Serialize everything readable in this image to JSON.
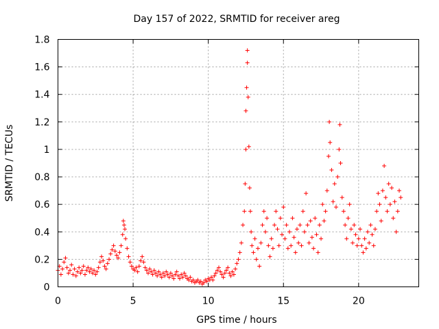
{
  "chart_data": {
    "type": "scatter",
    "title": "Day 157 of 2022, SRMTID for receiver areg",
    "xlabel": "GPS time / hours",
    "ylabel": "SRMTID / TECUs",
    "xlim": [
      0,
      24
    ],
    "ylim": [
      0,
      1.8
    ],
    "xticks": [
      0,
      5,
      10,
      15,
      20
    ],
    "xtick_labels": [
      "0",
      "5",
      "10",
      "15",
      "20"
    ],
    "yticks": [
      0,
      0.2,
      0.4,
      0.6,
      0.8,
      1,
      1.2,
      1.4,
      1.6,
      1.8
    ],
    "ytick_labels": [
      "0",
      "0.2",
      "0.4",
      "0.6",
      "0.8",
      "1",
      "1.2",
      "1.4",
      "1.6",
      "1.8"
    ],
    "grid": true,
    "marker": "plus",
    "series": [
      {
        "name": "SRMTID",
        "color": "#ff0000",
        "points": [
          [
            0.0,
            0.12
          ],
          [
            0.1,
            0.15
          ],
          [
            0.2,
            0.09
          ],
          [
            0.3,
            0.13
          ],
          [
            0.4,
            0.18
          ],
          [
            0.5,
            0.21
          ],
          [
            0.6,
            0.14
          ],
          [
            0.7,
            0.1
          ],
          [
            0.8,
            0.12
          ],
          [
            0.9,
            0.16
          ],
          [
            1.0,
            0.09
          ],
          [
            1.1,
            0.13
          ],
          [
            1.2,
            0.08
          ],
          [
            1.3,
            0.11
          ],
          [
            1.4,
            0.14
          ],
          [
            1.5,
            0.1
          ],
          [
            1.6,
            0.12
          ],
          [
            1.7,
            0.15
          ],
          [
            1.8,
            0.09
          ],
          [
            1.9,
            0.12
          ],
          [
            2.0,
            0.14
          ],
          [
            2.1,
            0.11
          ],
          [
            2.2,
            0.13
          ],
          [
            2.3,
            0.1
          ],
          [
            2.4,
            0.12
          ],
          [
            2.5,
            0.09
          ],
          [
            2.6,
            0.11
          ],
          [
            2.7,
            0.14
          ],
          [
            2.8,
            0.18
          ],
          [
            2.9,
            0.22
          ],
          [
            3.0,
            0.19
          ],
          [
            3.1,
            0.15
          ],
          [
            3.2,
            0.13
          ],
          [
            3.3,
            0.17
          ],
          [
            3.4,
            0.2
          ],
          [
            3.5,
            0.24
          ],
          [
            3.6,
            0.27
          ],
          [
            3.7,
            0.3
          ],
          [
            3.8,
            0.26
          ],
          [
            3.9,
            0.23
          ],
          [
            4.0,
            0.21
          ],
          [
            4.1,
            0.25
          ],
          [
            4.2,
            0.3
          ],
          [
            4.3,
            0.38
          ],
          [
            4.35,
            0.48
          ],
          [
            4.4,
            0.45
          ],
          [
            4.45,
            0.42
          ],
          [
            4.5,
            0.35
          ],
          [
            4.6,
            0.28
          ],
          [
            4.7,
            0.22
          ],
          [
            4.8,
            0.18
          ],
          [
            4.9,
            0.15
          ],
          [
            5.0,
            0.13
          ],
          [
            5.1,
            0.12
          ],
          [
            5.2,
            0.14
          ],
          [
            5.3,
            0.11
          ],
          [
            5.4,
            0.15
          ],
          [
            5.5,
            0.19
          ],
          [
            5.6,
            0.22
          ],
          [
            5.7,
            0.18
          ],
          [
            5.8,
            0.14
          ],
          [
            5.9,
            0.12
          ],
          [
            6.0,
            0.1
          ],
          [
            6.1,
            0.13
          ],
          [
            6.2,
            0.11
          ],
          [
            6.3,
            0.09
          ],
          [
            6.4,
            0.12
          ],
          [
            6.5,
            0.1
          ],
          [
            6.6,
            0.08
          ],
          [
            6.7,
            0.11
          ],
          [
            6.8,
            0.09
          ],
          [
            6.9,
            0.07
          ],
          [
            7.0,
            0.1
          ],
          [
            7.1,
            0.08
          ],
          [
            7.2,
            0.11
          ],
          [
            7.3,
            0.09
          ],
          [
            7.4,
            0.07
          ],
          [
            7.5,
            0.1
          ],
          [
            7.6,
            0.08
          ],
          [
            7.7,
            0.06
          ],
          [
            7.8,
            0.09
          ],
          [
            7.9,
            0.11
          ],
          [
            8.0,
            0.08
          ],
          [
            8.1,
            0.06
          ],
          [
            8.2,
            0.09
          ],
          [
            8.3,
            0.07
          ],
          [
            8.4,
            0.1
          ],
          [
            8.5,
            0.08
          ],
          [
            8.6,
            0.06
          ],
          [
            8.7,
            0.05
          ],
          [
            8.8,
            0.07
          ],
          [
            8.9,
            0.04
          ],
          [
            9.0,
            0.05
          ],
          [
            9.1,
            0.03
          ],
          [
            9.2,
            0.04
          ],
          [
            9.3,
            0.05
          ],
          [
            9.4,
            0.03
          ],
          [
            9.5,
            0.04
          ],
          [
            9.6,
            0.02
          ],
          [
            9.7,
            0.03
          ],
          [
            9.8,
            0.05
          ],
          [
            9.9,
            0.04
          ],
          [
            10.0,
            0.06
          ],
          [
            10.1,
            0.05
          ],
          [
            10.2,
            0.07
          ],
          [
            10.3,
            0.05
          ],
          [
            10.4,
            0.08
          ],
          [
            10.5,
            0.1
          ],
          [
            10.6,
            0.12
          ],
          [
            10.7,
            0.14
          ],
          [
            10.8,
            0.11
          ],
          [
            10.9,
            0.09
          ],
          [
            11.0,
            0.07
          ],
          [
            11.1,
            0.1
          ],
          [
            11.2,
            0.12
          ],
          [
            11.3,
            0.14
          ],
          [
            11.4,
            0.1
          ],
          [
            11.5,
            0.08
          ],
          [
            11.6,
            0.11
          ],
          [
            11.7,
            0.09
          ],
          [
            11.8,
            0.13
          ],
          [
            11.9,
            0.17
          ],
          [
            12.0,
            0.2
          ],
          [
            12.1,
            0.25
          ],
          [
            12.2,
            0.32
          ],
          [
            12.3,
            0.45
          ],
          [
            12.4,
            0.55
          ],
          [
            12.45,
            0.75
          ],
          [
            12.5,
            1.0
          ],
          [
            12.5,
            1.28
          ],
          [
            12.55,
            1.45
          ],
          [
            12.6,
            1.63
          ],
          [
            12.6,
            1.72
          ],
          [
            12.65,
            1.38
          ],
          [
            12.7,
            1.02
          ],
          [
            12.75,
            0.72
          ],
          [
            12.8,
            0.55
          ],
          [
            12.85,
            0.4
          ],
          [
            12.9,
            0.3
          ],
          [
            13.0,
            0.25
          ],
          [
            13.1,
            0.35
          ],
          [
            13.2,
            0.2
          ],
          [
            13.3,
            0.28
          ],
          [
            13.4,
            0.15
          ],
          [
            13.5,
            0.32
          ],
          [
            13.6,
            0.45
          ],
          [
            13.7,
            0.55
          ],
          [
            13.8,
            0.4
          ],
          [
            13.9,
            0.5
          ],
          [
            14.0,
            0.3
          ],
          [
            14.1,
            0.22
          ],
          [
            14.2,
            0.35
          ],
          [
            14.3,
            0.28
          ],
          [
            14.4,
            0.45
          ],
          [
            14.5,
            0.55
          ],
          [
            14.6,
            0.42
          ],
          [
            14.7,
            0.3
          ],
          [
            14.8,
            0.5
          ],
          [
            14.9,
            0.38
          ],
          [
            15.0,
            0.58
          ],
          [
            15.1,
            0.35
          ],
          [
            15.2,
            0.45
          ],
          [
            15.3,
            0.28
          ],
          [
            15.4,
            0.4
          ],
          [
            15.5,
            0.3
          ],
          [
            15.6,
            0.5
          ],
          [
            15.7,
            0.36
          ],
          [
            15.8,
            0.25
          ],
          [
            15.9,
            0.42
          ],
          [
            16.0,
            0.32
          ],
          [
            16.1,
            0.45
          ],
          [
            16.2,
            0.3
          ],
          [
            16.3,
            0.55
          ],
          [
            16.4,
            0.4
          ],
          [
            16.5,
            0.68
          ],
          [
            16.6,
            0.45
          ],
          [
            16.7,
            0.32
          ],
          [
            16.8,
            0.48
          ],
          [
            16.9,
            0.36
          ],
          [
            17.0,
            0.28
          ],
          [
            17.1,
            0.5
          ],
          [
            17.2,
            0.38
          ],
          [
            17.3,
            0.25
          ],
          [
            17.4,
            0.45
          ],
          [
            17.5,
            0.35
          ],
          [
            17.6,
            0.6
          ],
          [
            17.7,
            0.48
          ],
          [
            17.8,
            0.55
          ],
          [
            17.9,
            0.7
          ],
          [
            18.0,
            0.95
          ],
          [
            18.05,
            1.2
          ],
          [
            18.1,
            1.05
          ],
          [
            18.2,
            0.85
          ],
          [
            18.3,
            0.62
          ],
          [
            18.4,
            0.75
          ],
          [
            18.5,
            0.58
          ],
          [
            18.6,
            0.8
          ],
          [
            18.7,
            1.0
          ],
          [
            18.75,
            1.18
          ],
          [
            18.8,
            0.9
          ],
          [
            18.9,
            0.65
          ],
          [
            19.0,
            0.55
          ],
          [
            19.1,
            0.45
          ],
          [
            19.2,
            0.35
          ],
          [
            19.3,
            0.5
          ],
          [
            19.4,
            0.6
          ],
          [
            19.5,
            0.42
          ],
          [
            19.6,
            0.32
          ],
          [
            19.7,
            0.45
          ],
          [
            19.8,
            0.38
          ],
          [
            19.9,
            0.3
          ],
          [
            20.0,
            0.35
          ],
          [
            20.1,
            0.42
          ],
          [
            20.2,
            0.3
          ],
          [
            20.3,
            0.25
          ],
          [
            20.4,
            0.35
          ],
          [
            20.5,
            0.28
          ],
          [
            20.6,
            0.4
          ],
          [
            20.7,
            0.32
          ],
          [
            20.8,
            0.45
          ],
          [
            20.9,
            0.38
          ],
          [
            21.0,
            0.3
          ],
          [
            21.1,
            0.42
          ],
          [
            21.2,
            0.55
          ],
          [
            21.3,
            0.68
          ],
          [
            21.4,
            0.6
          ],
          [
            21.5,
            0.48
          ],
          [
            21.6,
            0.7
          ],
          [
            21.7,
            0.88
          ],
          [
            21.8,
            0.65
          ],
          [
            21.9,
            0.55
          ],
          [
            22.0,
            0.75
          ],
          [
            22.1,
            0.6
          ],
          [
            22.2,
            0.72
          ],
          [
            22.3,
            0.5
          ],
          [
            22.4,
            0.62
          ],
          [
            22.5,
            0.4
          ],
          [
            22.6,
            0.55
          ],
          [
            22.7,
            0.7
          ],
          [
            22.8,
            0.65
          ]
        ]
      }
    ]
  }
}
